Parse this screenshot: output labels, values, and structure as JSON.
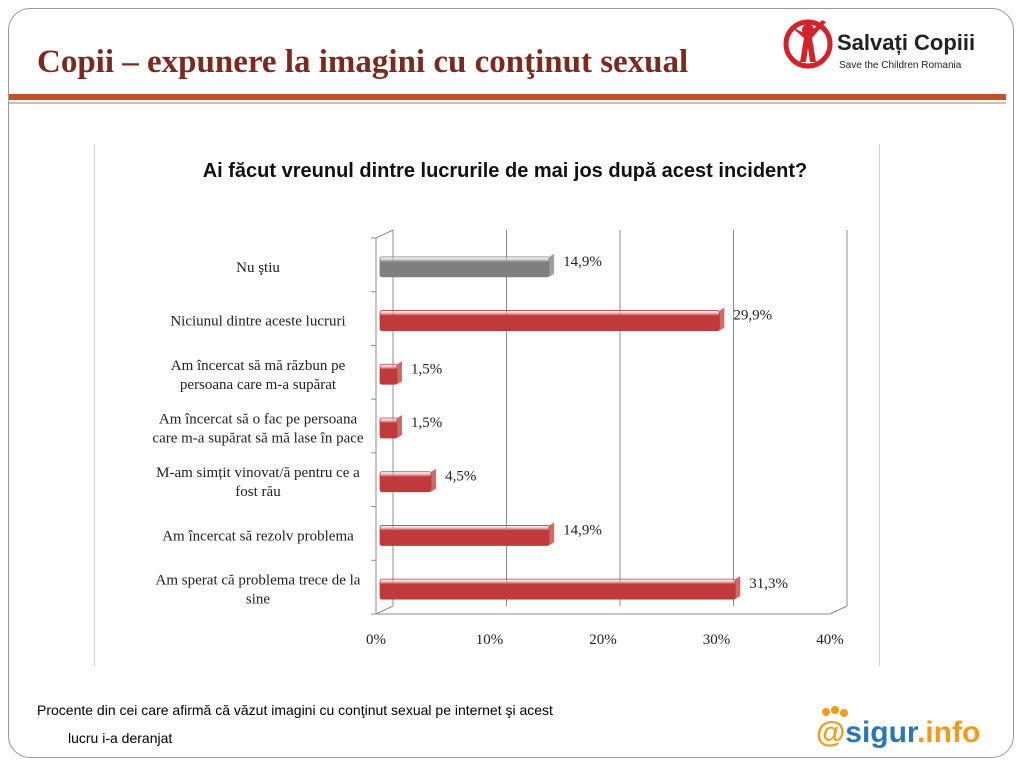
{
  "slide": {
    "title": "Copii – expunere la imagini cu conţinut sexual",
    "footnote_line1": "Procente din cei care afirmă că văzut imagini cu conţinut sexual pe internet şi acest",
    "footnote_line2": "lucru i-a deranjat"
  },
  "logos": {
    "salvati_name": "Salvați Copiii",
    "salvati_sub": "Save the Children Romania",
    "sigur_prefix": "@",
    "sigur_name": "sigur",
    "sigur_suffix": ".info"
  },
  "colors": {
    "title": "#7b2a20",
    "rule": "#c0502e",
    "bar_red": "#c0393b",
    "bar_gray": "#7f7f7f",
    "sigur_orange": "#f39a1e",
    "sigur_blue": "#2a76b8"
  },
  "chart_data": {
    "type": "bar",
    "orientation": "horizontal",
    "title": "Ai făcut vreunul dintre lucrurile de mai jos după acest incident?",
    "categories": [
      "Nu ştiu",
      "Niciunul dintre aceste lucruri",
      "Am încercat să mă răzbun pe persoana care m-a supărat",
      "Am încercat să o fac pe persoana care m-a supărat să mă lase în pace",
      "M-am simțit vinovat/ă pentru ce a fost rău",
      "Am încercat să rezolv problema",
      "Am sperat că problema trece de la sine"
    ],
    "category_lines": [
      [
        "Nu ştiu"
      ],
      [
        "Niciunul dintre aceste lucruri"
      ],
      [
        "Am încercat să mă răzbun pe",
        "persoana care m-a supărat"
      ],
      [
        "Am încercat să o fac pe persoana",
        "care m-a supărat să mă lase în pace"
      ],
      [
        "M-am simțit vinovat/ă pentru ce a",
        "fost rău"
      ],
      [
        "Am încercat să rezolv problema"
      ],
      [
        "Am sperat că problema trece de la",
        "sine"
      ]
    ],
    "values": [
      14.9,
      29.9,
      1.5,
      1.5,
      4.5,
      14.9,
      31.3
    ],
    "value_labels": [
      "14,9%",
      "29,9%",
      "1,5%",
      "1,5%",
      "4,5%",
      "14,9%",
      "31,3%"
    ],
    "bar_colors": [
      "gray",
      "red",
      "red",
      "red",
      "red",
      "red",
      "red"
    ],
    "xlim": [
      0,
      40
    ],
    "x_ticks": [
      0,
      10,
      20,
      30,
      40
    ],
    "x_tick_labels": [
      "0%",
      "10%",
      "20%",
      "30%",
      "40%"
    ],
    "grid": true
  }
}
